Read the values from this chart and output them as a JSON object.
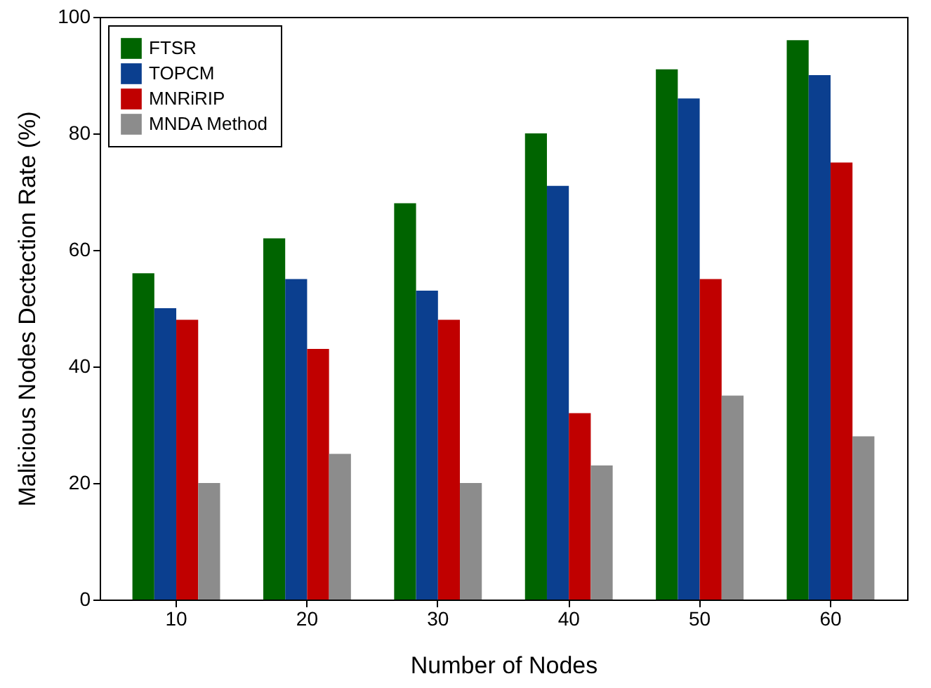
{
  "chart_data": {
    "type": "bar",
    "xlabel": "Number of Nodes",
    "ylabel": "Malicious Nodes Dectection Rate (%)",
    "categories": [
      "10",
      "20",
      "30",
      "40",
      "50",
      "60"
    ],
    "series": [
      {
        "name": "FTSR",
        "color": "#006400",
        "values": [
          56,
          62,
          68,
          80,
          91,
          96
        ]
      },
      {
        "name": "TOPCM",
        "color": "#0b3f8f",
        "values": [
          50,
          55,
          53,
          71,
          86,
          90
        ]
      },
      {
        "name": "MNRiRIP",
        "color": "#c00000",
        "values": [
          48,
          43,
          48,
          32,
          55,
          75
        ]
      },
      {
        "name": "MNDA Method",
        "color": "#8c8c8c",
        "values": [
          20,
          25,
          20,
          23,
          35,
          28
        ]
      }
    ],
    "ylim": [
      0,
      100
    ],
    "yticks": [
      0,
      20,
      40,
      60,
      80,
      100
    ],
    "grid": false,
    "legend": "top left"
  }
}
